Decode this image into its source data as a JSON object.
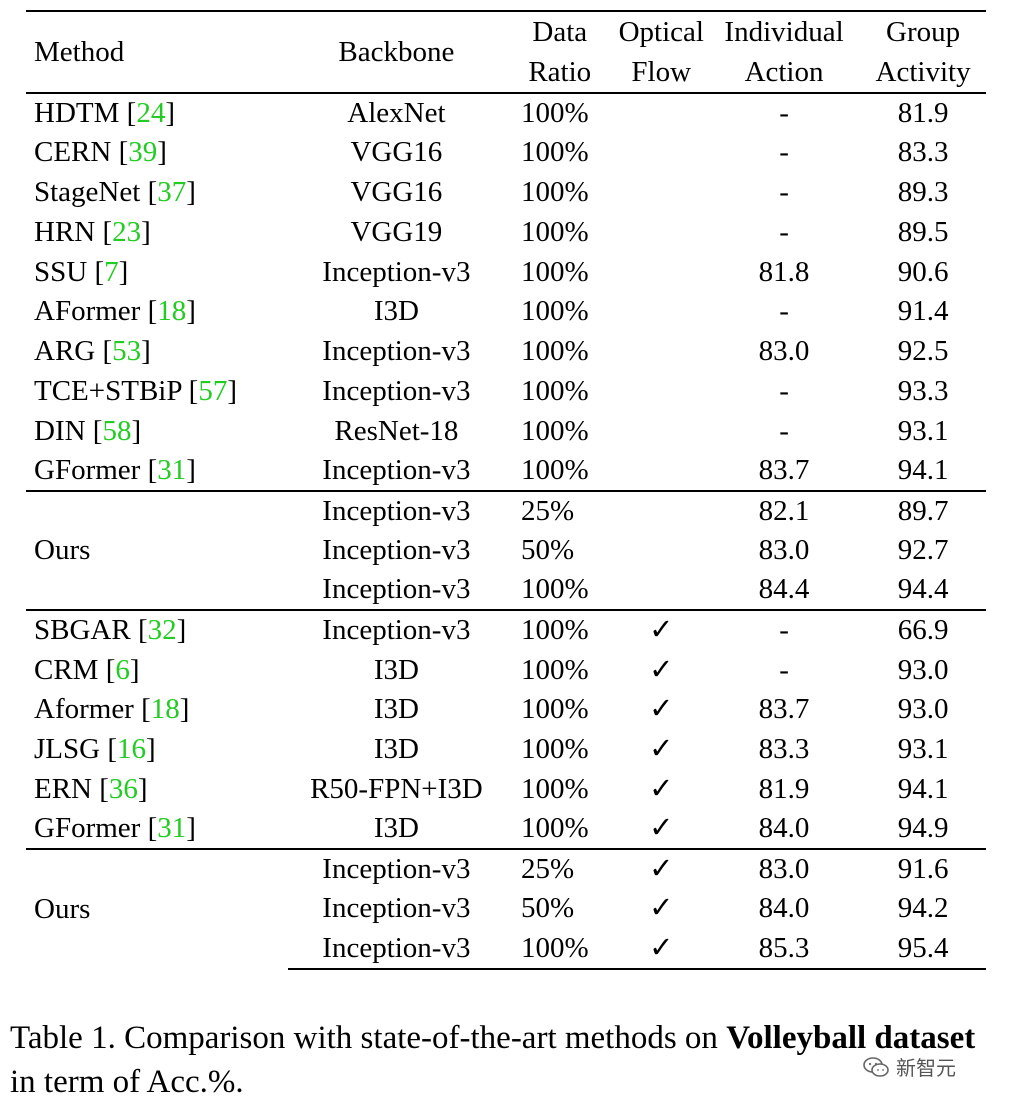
{
  "table": {
    "headers": [
      [
        "Method"
      ],
      [
        "Backbone"
      ],
      [
        "Data",
        "Ratio"
      ],
      [
        "Optical",
        "Flow"
      ],
      [
        "Individual",
        "Action"
      ],
      [
        "Group",
        "Activity"
      ]
    ],
    "sections": [
      {
        "rows": [
          {
            "method": "HDTM",
            "ref": "24",
            "backbone": "AlexNet",
            "ratio": "100%",
            "flow": "",
            "action": "-",
            "activity": "81.9"
          },
          {
            "method": "CERN",
            "ref": "39",
            "backbone": "VGG16",
            "ratio": "100%",
            "flow": "",
            "action": "-",
            "activity": "83.3"
          },
          {
            "method": "StageNet",
            "ref": "37",
            "backbone": "VGG16",
            "ratio": "100%",
            "flow": "",
            "action": "-",
            "activity": "89.3"
          },
          {
            "method": "HRN",
            "ref": "23",
            "backbone": "VGG19",
            "ratio": "100%",
            "flow": "",
            "action": "-",
            "activity": "89.5"
          },
          {
            "method": "SSU",
            "ref": "7",
            "backbone": "Inception-v3",
            "ratio": "100%",
            "flow": "",
            "action": "81.8",
            "activity": "90.6"
          },
          {
            "method": "AFormer",
            "ref": "18",
            "backbone": "I3D",
            "ratio": "100%",
            "flow": "",
            "action": "-",
            "activity": "91.4"
          },
          {
            "method": "ARG",
            "ref": "53",
            "backbone": "Inception-v3",
            "ratio": "100%",
            "flow": "",
            "action": "83.0",
            "activity": "92.5"
          },
          {
            "method": "TCE+STBiP",
            "ref": "57",
            "backbone": "Inception-v3",
            "ratio": "100%",
            "flow": "",
            "action": "-",
            "activity": "93.3"
          },
          {
            "method": "DIN",
            "ref": "58",
            "backbone": "ResNet-18",
            "ratio": "100%",
            "flow": "",
            "action": "-",
            "activity": "93.1"
          },
          {
            "method": "GFormer",
            "ref": "31",
            "backbone": "Inception-v3",
            "ratio": "100%",
            "flow": "",
            "action": "83.7",
            "activity": "94.1"
          }
        ]
      },
      {
        "ours_label": "Ours",
        "rows": [
          {
            "backbone": "Inception-v3",
            "ratio": "25%",
            "flow": "",
            "action": "82.1",
            "activity": "89.7"
          },
          {
            "backbone": "Inception-v3",
            "ratio": "50%",
            "flow": "",
            "action": "83.0",
            "activity": "92.7"
          },
          {
            "backbone": "Inception-v3",
            "ratio": "100%",
            "flow": "",
            "action": "84.4",
            "activity": "94.4",
            "bold": true
          }
        ]
      },
      {
        "rows": [
          {
            "method": "SBGAR",
            "ref": "32",
            "backbone": "Inception-v3",
            "ratio": "100%",
            "flow": "✓",
            "action": "-",
            "activity": "66.9"
          },
          {
            "method": "CRM",
            "ref": "6",
            "backbone": "I3D",
            "ratio": "100%",
            "flow": "✓",
            "action": "-",
            "activity": "93.0"
          },
          {
            "method": "Aformer",
            "ref": "18",
            "backbone": "I3D",
            "ratio": "100%",
            "flow": "✓",
            "action": "83.7",
            "activity": "93.0"
          },
          {
            "method": "JLSG",
            "ref": "16",
            "backbone": "I3D",
            "ratio": "100%",
            "flow": "✓",
            "action": "83.3",
            "activity": "93.1"
          },
          {
            "method": "ERN",
            "ref": "36",
            "backbone": "R50-FPN+I3D",
            "ratio": "100%",
            "flow": "✓",
            "action": "81.9",
            "activity": "94.1"
          },
          {
            "method": "GFormer",
            "ref": "31",
            "backbone": "I3D",
            "ratio": "100%",
            "flow": "✓",
            "action": "84.0",
            "activity": "94.9"
          }
        ]
      },
      {
        "ours_label": "Ours",
        "rows": [
          {
            "backbone": "Inception-v3",
            "ratio": "25%",
            "flow": "✓",
            "action": "83.0",
            "activity": "91.6"
          },
          {
            "backbone": "Inception-v3",
            "ratio": "50%",
            "flow": "✓",
            "action": "84.0",
            "activity": "94.2"
          },
          {
            "backbone": "Inception-v3",
            "ratio": "100%",
            "flow": "✓",
            "action": "85.3",
            "activity": "95.4",
            "bold": true
          }
        ]
      }
    ]
  },
  "caption": {
    "prefix": "Table 1. Comparison with state-of-the-art methods on ",
    "bold": "Volleyball dataset",
    "suffix": " in term of Acc.%."
  },
  "watermark": {
    "text": "新智元",
    "icon": "wechat-icon"
  }
}
